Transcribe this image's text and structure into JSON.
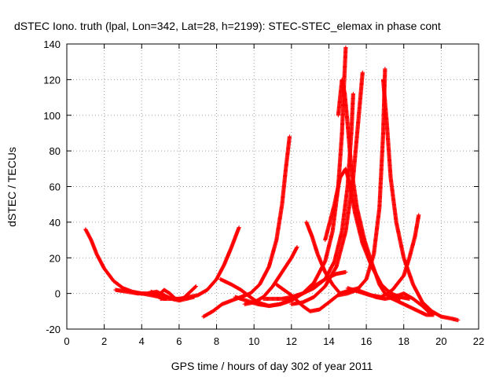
{
  "chart_data": {
    "type": "scatter",
    "title": "dSTEC Iono. truth (lpal, Lon=342, Lat=28, h=2199): STEC-STEC_elemax in phase cont",
    "xlabel": "GPS time / hours of day 302 of year 2011",
    "ylabel": "dSTEC  / TECUs",
    "xlim": [
      0,
      22
    ],
    "ylim": [
      -20,
      140
    ],
    "xticks": [
      0,
      2,
      4,
      6,
      8,
      10,
      12,
      14,
      16,
      18,
      20,
      22
    ],
    "yticks": [
      -20,
      0,
      20,
      40,
      60,
      80,
      100,
      120,
      140
    ],
    "grid": true,
    "grid_style": "dotted",
    "marker": "+",
    "marker_color": "#ff0000",
    "series": [
      {
        "x": [
          1.0,
          1.3,
          1.6,
          2.0,
          2.5,
          3.0,
          3.5,
          4.0,
          4.5,
          5.0,
          5.3
        ],
        "y": [
          36,
          30,
          22,
          14,
          7,
          3,
          1,
          0,
          -1,
          -2,
          -3
        ]
      },
      {
        "x": [
          2.6,
          3.2,
          3.8,
          4.3,
          4.8,
          5.2,
          5.6,
          6.0,
          6.4,
          6.8
        ],
        "y": [
          2,
          1,
          0,
          0,
          1,
          -1,
          -3,
          -4,
          -3,
          -2
        ]
      },
      {
        "x": [
          4.5,
          4.9,
          5.2,
          5.5,
          5.8,
          6.2,
          6.6,
          6.9
        ],
        "y": [
          1,
          -1,
          2,
          0,
          -3,
          -3,
          1,
          4
        ]
      },
      {
        "x": [
          5.0,
          5.5,
          6.0,
          6.5,
          7.0,
          7.5,
          8.0,
          8.4,
          8.8,
          9.2
        ],
        "y": [
          -3,
          -3,
          -3,
          -2,
          -1,
          2,
          8,
          16,
          26,
          37
        ]
      },
      {
        "x": [
          7.3,
          7.8,
          8.3,
          8.8,
          9.3,
          9.8,
          10.3,
          10.8,
          11.2,
          11.5,
          11.7,
          11.9
        ],
        "y": [
          -13,
          -10,
          -6,
          -4,
          -2,
          0,
          5,
          15,
          30,
          50,
          70,
          88
        ]
      },
      {
        "x": [
          8.2,
          8.8,
          9.3,
          9.8,
          10.2,
          10.8,
          11.4,
          12.0,
          12.6,
          13.2,
          13.8,
          14.4,
          14.9
        ],
        "y": [
          8,
          5,
          2,
          -2,
          -5,
          -7,
          -6,
          -3,
          0,
          4,
          8,
          11,
          12
        ]
      },
      {
        "x": [
          9.0,
          9.6,
          10.2,
          10.8,
          11.4,
          12.0,
          12.6,
          13.2,
          13.8,
          14.2,
          14.5,
          14.7,
          14.8,
          14.9
        ],
        "y": [
          -2,
          -4,
          -6,
          -7,
          -6,
          -4,
          0,
          6,
          18,
          35,
          60,
          90,
          115,
          138
        ]
      },
      {
        "x": [
          9.5,
          10.0,
          10.5,
          11.0,
          11.5,
          12.0,
          12.3
        ],
        "y": [
          -6,
          -5,
          -2,
          4,
          12,
          20,
          26
        ]
      },
      {
        "x": [
          10.5,
          11.0,
          11.5,
          12.0,
          12.6,
          13.2,
          13.8,
          14.3,
          14.7,
          15.0,
          15.2,
          15.3
        ],
        "y": [
          -3,
          -3,
          -3,
          -2,
          0,
          3,
          8,
          18,
          35,
          60,
          90,
          112
        ]
      },
      {
        "x": [
          11.2,
          11.6,
          12.0,
          12.3,
          12.6,
          13.0,
          13.5,
          14.0,
          14.6,
          15.2,
          15.6
        ],
        "y": [
          5,
          2,
          -1,
          -4,
          -7,
          -10,
          -9,
          -5,
          0,
          2,
          3
        ]
      },
      {
        "x": [
          12.0,
          12.6,
          13.2,
          13.8,
          14.4,
          14.9,
          15.3,
          15.6,
          15.8
        ],
        "y": [
          -6,
          -5,
          -2,
          4,
          15,
          35,
          65,
          100,
          124
        ]
      },
      {
        "x": [
          12.8,
          13.1,
          13.4,
          13.8,
          14.2,
          14.6,
          15.0,
          15.5,
          16.0,
          16.5,
          17.0,
          17.5,
          18.0,
          18.5,
          19.0,
          19.5
        ],
        "y": [
          40,
          32,
          22,
          12,
          5,
          0,
          1,
          2,
          0,
          -2,
          -3,
          -2,
          0,
          -3,
          -7,
          -12
        ]
      },
      {
        "x": [
          13.8,
          14.3,
          14.6,
          14.9,
          15.1,
          15.4,
          15.8,
          16.3,
          16.8,
          17.3,
          17.8,
          18.3
        ],
        "y": [
          30,
          50,
          65,
          70,
          62,
          45,
          28,
          15,
          5,
          0,
          -2,
          -3
        ]
      },
      {
        "x": [
          14.5,
          14.7,
          14.85,
          15.0,
          15.2,
          15.5,
          15.9,
          16.3,
          16.7,
          17.0,
          17.3,
          17.6,
          17.8
        ],
        "y": [
          100,
          120,
          112,
          95,
          70,
          48,
          30,
          17,
          5,
          0,
          -2,
          -3,
          -3
        ]
      },
      {
        "x": [
          14.5,
          15.0,
          15.5,
          16.0,
          16.4,
          16.7,
          16.9,
          17.0
        ],
        "y": [
          -1,
          0,
          2,
          8,
          22,
          48,
          90,
          126
        ]
      },
      {
        "x": [
          16.9,
          17.1,
          17.3,
          17.6,
          18.0,
          18.5,
          19.0,
          19.5,
          20.0,
          20.5,
          20.9
        ],
        "y": [
          120,
          95,
          65,
          40,
          20,
          5,
          -5,
          -10,
          -13,
          -14,
          -15
        ]
      },
      {
        "x": [
          15.0,
          15.6,
          16.2,
          16.8,
          17.4,
          18.0,
          18.3,
          18.6,
          18.8
        ],
        "y": [
          3,
          1,
          -1,
          -2,
          2,
          10,
          20,
          32,
          44
        ]
      },
      {
        "x": [
          17.2,
          17.6,
          18.0,
          18.4,
          18.8,
          19.2,
          19.6
        ],
        "y": [
          -2,
          -4,
          -6,
          -8,
          -10,
          -12,
          -12
        ]
      }
    ]
  }
}
